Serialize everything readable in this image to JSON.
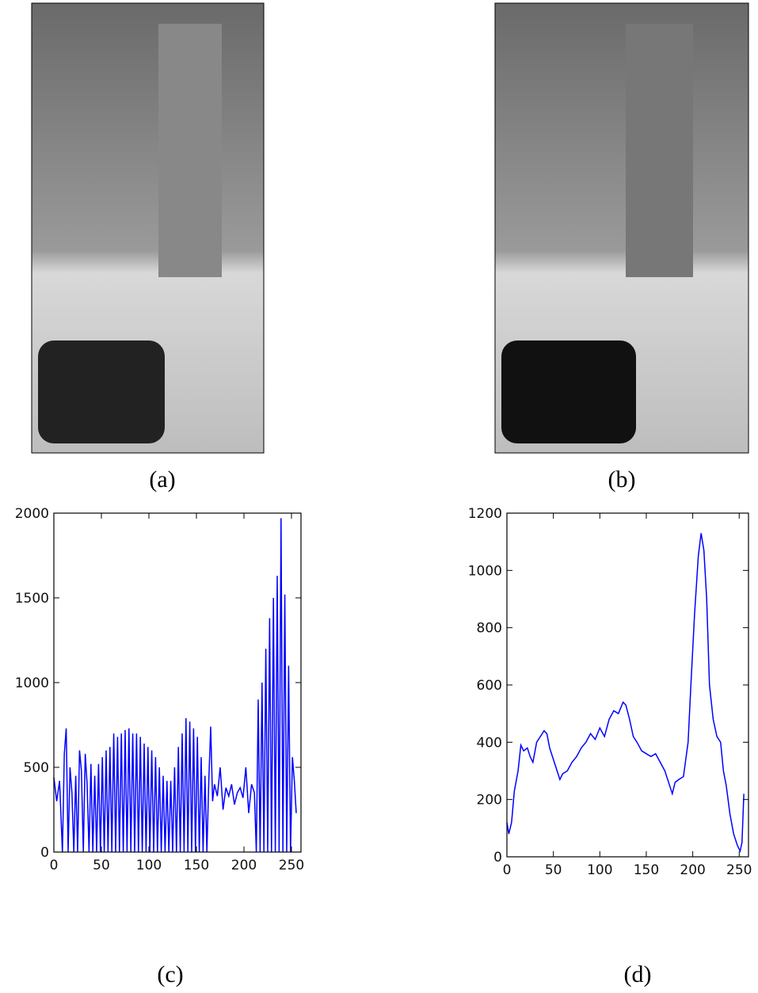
{
  "captions": [
    "(a)",
    "(b)",
    "(c)",
    "(d)"
  ],
  "chart_data": [
    {
      "type": "line",
      "x": [
        0,
        3,
        6,
        9,
        11,
        13,
        15,
        17,
        19,
        21,
        23,
        25,
        27,
        29,
        31,
        33,
        35,
        37,
        39,
        41,
        43,
        45,
        47,
        49,
        51,
        53,
        55,
        57,
        59,
        61,
        63,
        65,
        67,
        69,
        71,
        73,
        75,
        77,
        79,
        81,
        83,
        85,
        87,
        89,
        91,
        93,
        95,
        97,
        99,
        101,
        103,
        105,
        107,
        109,
        111,
        113,
        115,
        117,
        119,
        121,
        123,
        125,
        127,
        129,
        131,
        133,
        135,
        137,
        139,
        141,
        143,
        145,
        147,
        149,
        151,
        153,
        155,
        157,
        159,
        161,
        163,
        165,
        167,
        169,
        172,
        175,
        178,
        181,
        184,
        187,
        190,
        193,
        196,
        199,
        202,
        205,
        208,
        211,
        213,
        215,
        217,
        219,
        221,
        223,
        225,
        227,
        229,
        231,
        233,
        235,
        237,
        239,
        241,
        243,
        245,
        247,
        249,
        251,
        253,
        255
      ],
      "series": [
        {
          "color": "#0000ff",
          "values": [
            440,
            300,
            420,
            0,
            580,
            730,
            0,
            500,
            350,
            0,
            450,
            0,
            600,
            480,
            0,
            580,
            400,
            0,
            520,
            0,
            450,
            0,
            520,
            0,
            560,
            0,
            600,
            0,
            620,
            0,
            700,
            0,
            680,
            0,
            700,
            0,
            720,
            0,
            730,
            0,
            700,
            0,
            700,
            0,
            680,
            0,
            640,
            0,
            620,
            0,
            600,
            0,
            560,
            0,
            500,
            0,
            450,
            0,
            420,
            0,
            420,
            0,
            500,
            0,
            620,
            0,
            700,
            0,
            790,
            0,
            770,
            0,
            730,
            0,
            680,
            0,
            560,
            0,
            450,
            0,
            420,
            740,
            300,
            400,
            330,
            500,
            250,
            380,
            330,
            400,
            280,
            350,
            380,
            320,
            500,
            230,
            400,
            350,
            0,
            900,
            0,
            1000,
            0,
            1200,
            0,
            1380,
            0,
            1500,
            0,
            1630,
            0,
            1970,
            0,
            1520,
            0,
            1100,
            0,
            560,
            420,
            230
          ]
        }
      ],
      "xlim": [
        0,
        260
      ],
      "ylim": [
        0,
        2000
      ],
      "xticks": [
        0,
        50,
        100,
        150,
        200,
        250
      ],
      "yticks": [
        0,
        500,
        1000,
        1500,
        2000
      ]
    },
    {
      "type": "line",
      "x": [
        0,
        2,
        5,
        8,
        12,
        15,
        18,
        22,
        25,
        28,
        32,
        36,
        40,
        43,
        46,
        50,
        54,
        57,
        60,
        65,
        70,
        75,
        80,
        85,
        90,
        95,
        100,
        105,
        110,
        115,
        120,
        125,
        128,
        132,
        136,
        140,
        145,
        150,
        155,
        160,
        165,
        170,
        175,
        178,
        181,
        185,
        190,
        195,
        198,
        202,
        206,
        209,
        212,
        215,
        218,
        222,
        226,
        230,
        233,
        236,
        240,
        244,
        248,
        251,
        253,
        255
      ],
      "series": [
        {
          "color": "#0000ff",
          "values": [
            120,
            80,
            120,
            230,
            300,
            390,
            370,
            380,
            350,
            330,
            400,
            420,
            440,
            430,
            380,
            340,
            300,
            270,
            290,
            300,
            330,
            350,
            380,
            400,
            430,
            410,
            450,
            420,
            480,
            510,
            500,
            540,
            530,
            480,
            420,
            400,
            370,
            360,
            350,
            360,
            330,
            300,
            250,
            220,
            260,
            270,
            280,
            400,
            600,
            850,
            1050,
            1130,
            1070,
            900,
            600,
            480,
            420,
            400,
            300,
            250,
            150,
            80,
            40,
            20,
            50,
            220
          ]
        }
      ],
      "xlim": [
        0,
        260
      ],
      "ylim": [
        0,
        1200
      ],
      "xticks": [
        0,
        50,
        100,
        150,
        200,
        250
      ],
      "yticks": [
        0,
        200,
        400,
        600,
        800,
        1000,
        1200
      ]
    }
  ]
}
